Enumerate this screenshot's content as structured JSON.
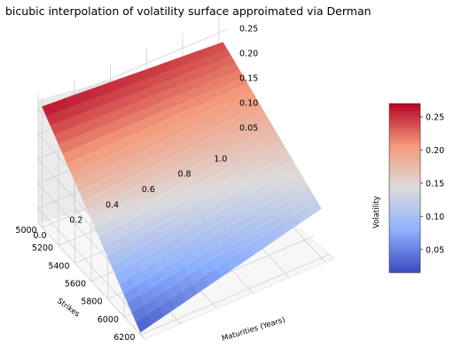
{
  "chart_data": {
    "type": "surface",
    "title": "bicubic interpolation of volatility surface approimated via Derman",
    "xlabel": "Maturities (Years)",
    "ylabel": "Strikes",
    "zlabel": "Volatility",
    "x_ticks": [
      "0.0",
      "0.2",
      "0.4",
      "0.6",
      "0.8",
      "1.0"
    ],
    "y_ticks": [
      "5000",
      "5200",
      "5400",
      "5600",
      "5800",
      "6000",
      "6200"
    ],
    "z_ticks": [
      "0.05",
      "0.10",
      "0.15",
      "0.20",
      "0.25"
    ],
    "colorbar_ticks": [
      "0.05",
      "0.10",
      "0.15",
      "0.20",
      "0.25"
    ],
    "xlim": [
      0.0,
      1.05
    ],
    "ylim": [
      4950,
      6250
    ],
    "zlim": [
      0.02,
      0.28
    ],
    "colorbar_range": [
      0.015,
      0.27
    ],
    "colormap": "coolwarm",
    "grid": true,
    "colorbar_position": "right",
    "corner_values": {
      "t0_k5000": 0.265,
      "t1_k5000": 0.24,
      "t0_k6200": 0.025,
      "t1_k6200": 0.12
    }
  }
}
